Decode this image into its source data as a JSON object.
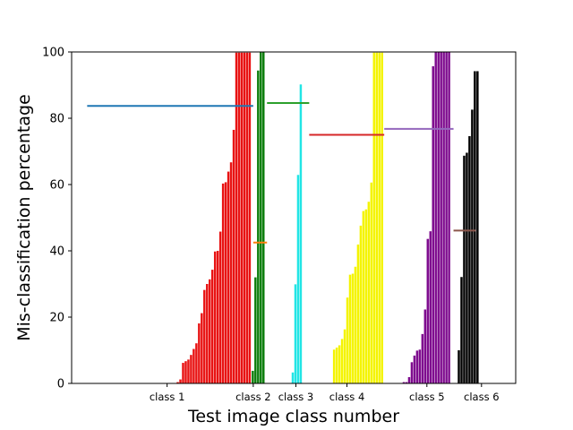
{
  "chart_data": {
    "type": "bar",
    "xlabel": "Test image class number",
    "ylabel": "Mis-classification percentage",
    "ylim": [
      0,
      100
    ],
    "xlim": [
      0,
      1000
    ],
    "yticks": [
      0,
      20,
      40,
      60,
      80,
      100
    ],
    "grid": false,
    "categories": [
      {
        "label": "class 1",
        "position": 215
      },
      {
        "label": "class 2",
        "position": 409
      },
      {
        "label": "class 3",
        "position": 505
      },
      {
        "label": "class 4",
        "position": 620
      },
      {
        "label": "class 5",
        "position": 800
      },
      {
        "label": "class 6",
        "position": 923
      }
    ],
    "series": [
      {
        "color": "#e81313",
        "x": [
          239,
          245,
          251,
          257,
          263,
          269,
          275,
          281,
          287,
          293,
          299,
          305,
          311,
          317,
          323,
          329,
          335,
          341,
          347,
          353,
          359,
          365,
          371,
          377,
          383,
          389,
          395,
          401
        ],
        "values": [
          0.4,
          1.2,
          6.2,
          6.7,
          7.2,
          8.6,
          10.4,
          12.1,
          18.1,
          21.2,
          28.2,
          30.0,
          31.4,
          34.3,
          39.8,
          40.0,
          45.8,
          60.3,
          60.7,
          63.9,
          66.7,
          76.5,
          99.8,
          99.8,
          99.8,
          99.8,
          99.8,
          99.8
        ]
      },
      {
        "color": "#0b7d0b",
        "x": [
          408,
          414,
          420,
          426,
          432
        ],
        "values": [
          3.8,
          32.0,
          94.4,
          100.0,
          100.0
        ]
      },
      {
        "color": "#22e5e5",
        "x": [
          498,
          504,
          510,
          516
        ],
        "values": [
          3.3,
          29.9,
          62.9,
          90.2
        ]
      },
      {
        "color": "#f4f400",
        "x": [
          591,
          597,
          603,
          609,
          615,
          621,
          627,
          633,
          639,
          645,
          651,
          657,
          663,
          669,
          675,
          681,
          687,
          693,
          699
        ],
        "values": [
          10.2,
          10.8,
          11.5,
          13.4,
          16.3,
          25.9,
          32.8,
          33.1,
          35.2,
          41.9,
          47.6,
          52.0,
          52.5,
          54.8,
          60.6,
          99.8,
          99.8,
          99.8,
          99.8
        ]
      },
      {
        "color": "#7e0b8e",
        "x": [
          748,
          754,
          760,
          766,
          772,
          778,
          784,
          790,
          796,
          802,
          808,
          814,
          820,
          826,
          832,
          838,
          844,
          850
        ],
        "values": [
          0.4,
          0.4,
          1.9,
          6.4,
          8.4,
          9.9,
          10.2,
          14.9,
          22.3,
          43.6,
          45.9,
          95.7,
          100.0,
          100.0,
          100.0,
          100.0,
          100.0,
          100.0
        ]
      },
      {
        "color": "#000000",
        "x": [
          872,
          878,
          884,
          890,
          896,
          902,
          908,
          914
        ],
        "values": [
          10.0,
          32.1,
          68.7,
          69.6,
          74.6,
          82.6,
          94.2,
          94.2
        ]
      }
    ],
    "averages": [
      {
        "color": "#1f77b4",
        "x_start": 35,
        "x_end": 409,
        "value": 83.7
      },
      {
        "color": "#ff7f0e",
        "x_start": 409,
        "x_end": 440,
        "value": 42.5
      },
      {
        "color": "#2ca02c",
        "x_start": 440,
        "x_end": 535,
        "value": 84.6
      },
      {
        "color": "#d62728",
        "x_start": 535,
        "x_end": 704,
        "value": 75.0
      },
      {
        "color": "#9467bd",
        "x_start": 704,
        "x_end": 860,
        "value": 76.8
      },
      {
        "color": "#8c564b",
        "x_start": 860,
        "x_end": 910,
        "value": 46.1
      }
    ]
  }
}
